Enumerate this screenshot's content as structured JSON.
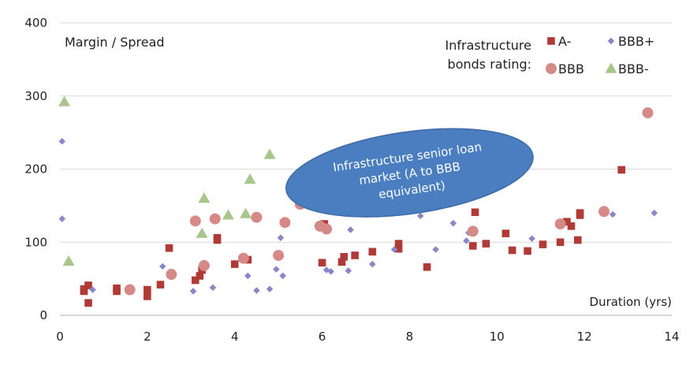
{
  "chart_data": {
    "type": "scatter",
    "title": "",
    "ylabel": "Margin / Spread",
    "xlabel": "Duration (yrs)",
    "xlim": [
      0,
      14
    ],
    "ylim": [
      0,
      400
    ],
    "xticks": [
      0,
      2,
      4,
      6,
      8,
      10,
      12,
      14
    ],
    "yticks": [
      0,
      100,
      200,
      300,
      400
    ],
    "grid": "horizontal",
    "legend_title_line1": "Infrastructure",
    "legend_title_line2": "bonds rating:",
    "legend_position": "top-right",
    "annotation": {
      "text_lines": [
        "Infrastructure senior loan",
        "market (A to BBB",
        "equivalent)"
      ],
      "color": "#4a7ec0",
      "center": [
        8.0,
        195
      ],
      "radius_x": 2.85,
      "radius_y": 56,
      "rotation": -8
    },
    "series": [
      {
        "name": "A-",
        "marker": "square",
        "color": "#b03a36",
        "points": [
          [
            0.55,
            33
          ],
          [
            0.55,
            36
          ],
          [
            0.65,
            41
          ],
          [
            0.65,
            17
          ],
          [
            1.3,
            33
          ],
          [
            1.3,
            37
          ],
          [
            2.0,
            35
          ],
          [
            2.0,
            26
          ],
          [
            2.3,
            42
          ],
          [
            2.5,
            92
          ],
          [
            3.1,
            48
          ],
          [
            3.2,
            54
          ],
          [
            3.25,
            62
          ],
          [
            3.6,
            106
          ],
          [
            3.6,
            103
          ],
          [
            4.0,
            70
          ],
          [
            4.3,
            76
          ],
          [
            6.0,
            72
          ],
          [
            6.05,
            125
          ],
          [
            6.45,
            73
          ],
          [
            6.5,
            80
          ],
          [
            6.75,
            82
          ],
          [
            7.15,
            87
          ],
          [
            7.75,
            98
          ],
          [
            7.75,
            91
          ],
          [
            8.4,
            66
          ],
          [
            9.45,
            95
          ],
          [
            9.5,
            141
          ],
          [
            9.75,
            98
          ],
          [
            10.2,
            112
          ],
          [
            10.35,
            89
          ],
          [
            10.7,
            88
          ],
          [
            11.05,
            97
          ],
          [
            11.45,
            100
          ],
          [
            11.6,
            128
          ],
          [
            11.7,
            122
          ],
          [
            11.85,
            103
          ],
          [
            11.9,
            137
          ],
          [
            11.9,
            140
          ],
          [
            12.85,
            199
          ]
        ]
      },
      {
        "name": "BBB+",
        "marker": "diamond",
        "color": "#8b86c8",
        "points": [
          [
            0.05,
            132
          ],
          [
            0.05,
            238
          ],
          [
            0.75,
            35
          ],
          [
            2.35,
            67
          ],
          [
            3.05,
            33
          ],
          [
            3.5,
            38
          ],
          [
            4.3,
            54
          ],
          [
            4.5,
            34
          ],
          [
            4.8,
            36
          ],
          [
            4.95,
            63
          ],
          [
            5.05,
            106
          ],
          [
            5.1,
            54
          ],
          [
            6.1,
            62
          ],
          [
            6.2,
            60
          ],
          [
            6.6,
            61
          ],
          [
            6.65,
            117
          ],
          [
            7.15,
            70
          ],
          [
            7.65,
            90
          ],
          [
            8.25,
            136
          ],
          [
            8.6,
            90
          ],
          [
            9.0,
            126
          ],
          [
            9.3,
            102
          ],
          [
            9.35,
            113
          ],
          [
            10.8,
            105
          ],
          [
            12.65,
            138
          ],
          [
            13.6,
            140
          ]
        ]
      },
      {
        "name": "BBB",
        "marker": "circle",
        "color": "#d68a87",
        "points": [
          [
            1.6,
            35
          ],
          [
            2.55,
            56
          ],
          [
            3.1,
            129
          ],
          [
            3.3,
            68
          ],
          [
            3.55,
            132
          ],
          [
            4.2,
            78
          ],
          [
            4.5,
            134
          ],
          [
            5.0,
            82
          ],
          [
            5.15,
            127
          ],
          [
            5.5,
            152
          ],
          [
            5.95,
            122
          ],
          [
            6.1,
            118
          ],
          [
            9.45,
            115
          ],
          [
            11.45,
            125
          ],
          [
            12.45,
            142
          ],
          [
            13.45,
            277
          ]
        ]
      },
      {
        "name": "BBB-",
        "marker": "triangle",
        "color": "#a8c68c",
        "points": [
          [
            0.1,
            292
          ],
          [
            0.2,
            74
          ],
          [
            3.25,
            112
          ],
          [
            3.3,
            160
          ],
          [
            3.85,
            137
          ],
          [
            4.25,
            139
          ],
          [
            4.35,
            186
          ],
          [
            4.8,
            220
          ]
        ]
      }
    ]
  }
}
